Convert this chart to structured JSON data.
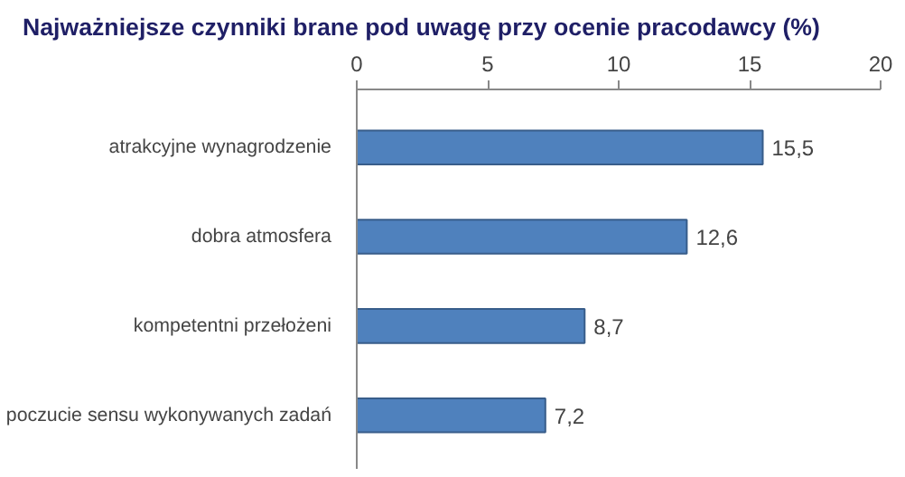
{
  "chart_data": {
    "type": "bar",
    "orientation": "horizontal",
    "title": "Najważniejsze czynniki brane pod uwagę przy ocenie pracodawcy (%)",
    "categories": [
      "atrakcyjne wynagrodzenie",
      "dobra atmosfera",
      "kompetentni przełożeni",
      "poczucie sensu wykonywanych zadań"
    ],
    "values": [
      15.5,
      12.6,
      8.7,
      7.2
    ],
    "color": "#4f81bd",
    "xlim": [
      0,
      20
    ],
    "xticks": [
      0,
      5,
      10,
      15,
      20
    ],
    "value_labels": [
      "15,5",
      "12,6",
      "8,7",
      "7,2"
    ],
    "grid": false
  }
}
